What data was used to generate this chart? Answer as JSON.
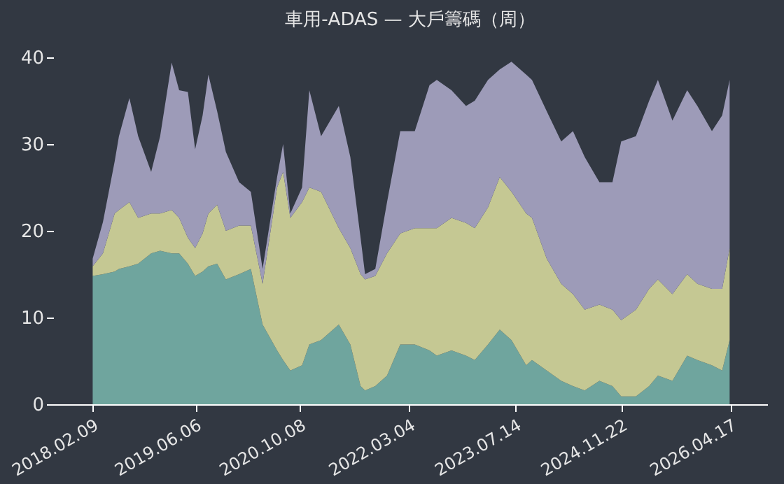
{
  "chart_data": {
    "type": "area",
    "title": "車用-ADAS — 大戶籌碼（周）",
    "stacked": true,
    "x": [
      "2018-02-09",
      "2018-03-29",
      "2018-05-23",
      "2018-06-12",
      "2018-07-31",
      "2018-09-10",
      "2018-11-10",
      "2018-12-22",
      "2019-02-14",
      "2019-03-21",
      "2019-05-01",
      "2019-06-04",
      "2019-07-09",
      "2019-08-05",
      "2019-09-15",
      "2019-10-26",
      "2019-12-27",
      "2020-02-20",
      "2020-04-15",
      "2020-06-22",
      "2020-07-20",
      "2020-08-23",
      "2020-10-17",
      "2020-11-20",
      "2021-01-14",
      "2021-04-07",
      "2021-05-31",
      "2021-07-18",
      "2021-08-08",
      "2021-09-25",
      "2021-11-19",
      "2022-01-20",
      "2022-03-29",
      "2022-06-06",
      "2022-07-10",
      "2022-09-17",
      "2022-11-24",
      "2023-01-04",
      "2023-03-07",
      "2023-05-01",
      "2023-06-25",
      "2023-09-02",
      "2023-09-29",
      "2023-12-07",
      "2024-02-13",
      "2024-04-08",
      "2024-06-02",
      "2024-08-10",
      "2024-10-10",
      "2024-11-20",
      "2025-01-28",
      "2025-03-31",
      "2025-05-11",
      "2025-07-18",
      "2025-09-25",
      "2025-11-12",
      "2026-01-19",
      "2026-03-08",
      "2026-04-12"
    ],
    "series": [
      {
        "color": "#6fa59e",
        "values": [
          14.8,
          15,
          15.3,
          15.6,
          15.9,
          16.2,
          17.4,
          17.7,
          17.4,
          17.4,
          16.2,
          14.8,
          15.3,
          15.9,
          16.2,
          14.4,
          15,
          15.6,
          9.2,
          6.2,
          5.1,
          3.9,
          4.5,
          6.9,
          7.4,
          9.2,
          6.9,
          2.1,
          1.6,
          2.1,
          3.3,
          6.9,
          6.9,
          6.2,
          5.6,
          6.2,
          5.6,
          5.1,
          6.9,
          8.6,
          7.4,
          4.5,
          5.1,
          3.9,
          2.7,
          2.1,
          1.6,
          2.7,
          2.1,
          0.9,
          0.9,
          2.1,
          3.3,
          2.7,
          5.6,
          5.1,
          4.5,
          3.9,
          7.4
        ]
      },
      {
        "color": "#c5c893",
        "values": [
          1.1,
          2.4,
          6.7,
          6.8,
          7.4,
          5.3,
          4.6,
          4.3,
          5,
          4.1,
          3,
          3.2,
          4.4,
          6.1,
          6.8,
          5.6,
          5.6,
          5,
          4.7,
          18.8,
          21.7,
          17.6,
          18.8,
          18.1,
          17.1,
          11.1,
          11.1,
          12.9,
          12.8,
          12.7,
          14.1,
          12.8,
          13.4,
          14.1,
          14.7,
          15.3,
          15.3,
          15.2,
          15.8,
          17.6,
          17.1,
          17.5,
          16.4,
          12.9,
          11.2,
          10.6,
          9.3,
          8.8,
          8.8,
          8.8,
          10,
          11.2,
          11.1,
          10,
          9.4,
          8.8,
          8.8,
          9.4,
          10.6
        ]
      },
      {
        "color": "#9d9bb8",
        "values": [
          0.9,
          3.6,
          6,
          8.5,
          12,
          9.4,
          4.8,
          8.9,
          17,
          14.7,
          16.8,
          11.4,
          13.6,
          16,
          10.8,
          9.1,
          5,
          3.9,
          1.7,
          1.2,
          3.2,
          0.5,
          1.7,
          11.2,
          6.4,
          14.1,
          10.5,
          4.2,
          0.6,
          0.8,
          5.9,
          11.8,
          11.2,
          16.5,
          17.1,
          14.7,
          13.5,
          14.7,
          14.7,
          12.4,
          15,
          16,
          15.9,
          17,
          16.4,
          18.8,
          17.6,
          14.1,
          14.7,
          20.6,
          20,
          21.7,
          23,
          20,
          21.2,
          20.5,
          18.2,
          20,
          19.4
        ]
      }
    ],
    "xlim": [
      "2017-08-08",
      "2026-10-05"
    ],
    "xticks": [
      {
        "value": "2018-02-09",
        "label": "2018.02.09"
      },
      {
        "value": "2019-06-06",
        "label": "2019.06.06"
      },
      {
        "value": "2020-10-08",
        "label": "2020.10.08"
      },
      {
        "value": "2022-03-04",
        "label": "2022.03.04"
      },
      {
        "value": "2023-07-14",
        "label": "2023.07.14"
      },
      {
        "value": "2024-11-22",
        "label": "2024.11.22"
      },
      {
        "value": "2026-04-17",
        "label": "2026.04.17"
      }
    ],
    "ylim": [
      0,
      40
    ],
    "yticks": [
      0,
      10,
      20,
      30,
      40
    ]
  }
}
